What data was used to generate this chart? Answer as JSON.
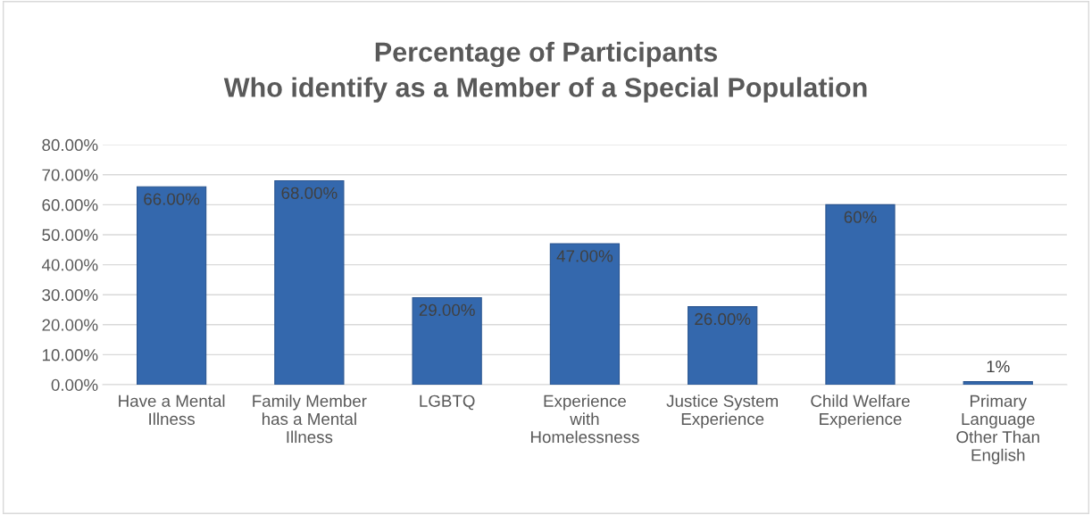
{
  "chart_data": {
    "type": "bar",
    "title": "Percentage of Participants\nWho identify as a Member of a Special Population",
    "categories": [
      "Have a Mental\nIllness",
      "Family Member\nhas a Mental\nIllness",
      "LGBTQ",
      "Experience\nwith\nHomelessness",
      "Justice System\nExperience",
      "Child Welfare\nExperience",
      "Primary\nLanguage\nOther Than\nEnglish"
    ],
    "values": [
      66,
      68,
      29,
      47,
      26,
      60,
      1
    ],
    "value_labels": [
      "66.00%",
      "68.00%",
      "29.00%",
      "47.00%",
      "26.00%",
      "60%",
      "1%"
    ],
    "color": "#3468ad",
    "ylim": [
      0,
      80
    ],
    "yticks": [
      {
        "value": 0,
        "label": "0.00%"
      },
      {
        "value": 10,
        "label": "10.00%"
      },
      {
        "value": 20,
        "label": "20.00%"
      },
      {
        "value": 30,
        "label": "30.00%"
      },
      {
        "value": 40,
        "label": "40.00%"
      },
      {
        "value": 50,
        "label": "50.00%"
      },
      {
        "value": 60,
        "label": "60.00%"
      },
      {
        "value": 70,
        "label": "70.00%"
      },
      {
        "value": 80,
        "label": "80.00%"
      }
    ],
    "grid": "y"
  }
}
